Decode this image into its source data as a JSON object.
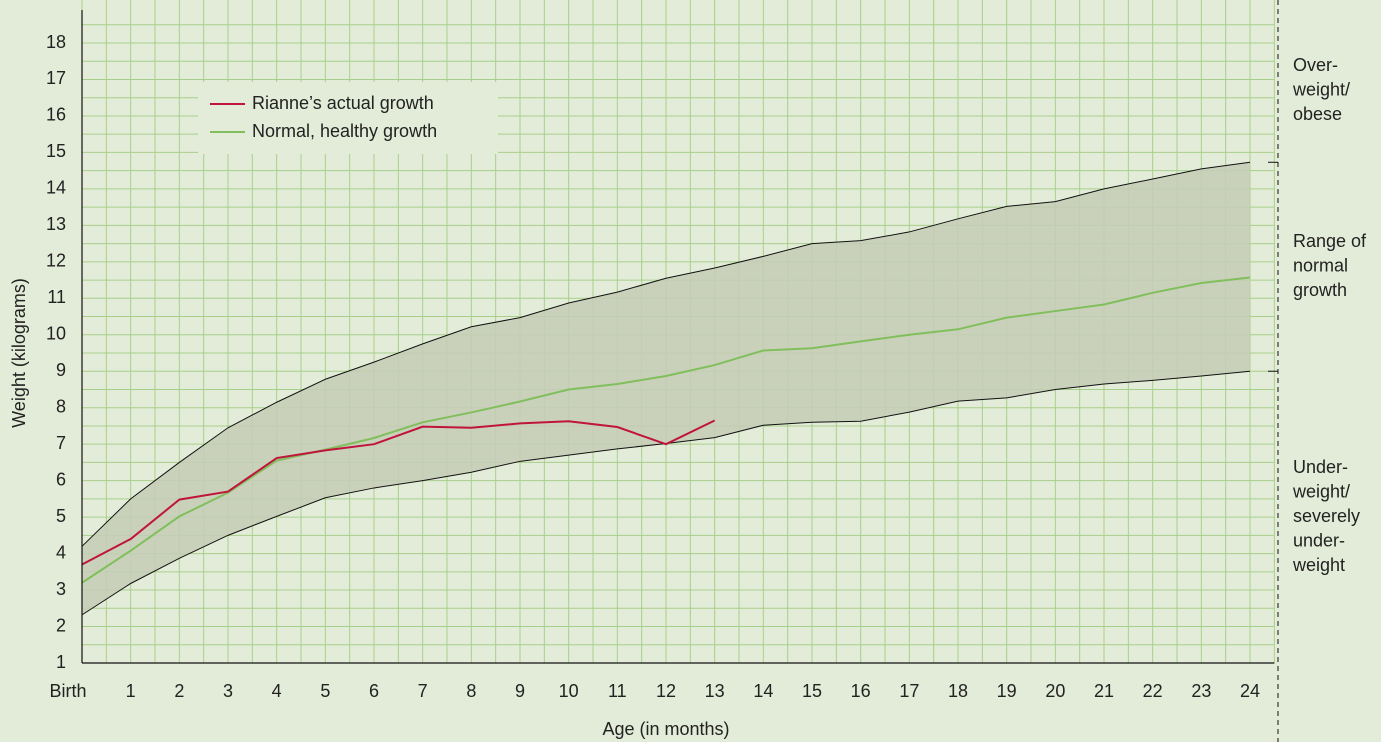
{
  "chart_data": {
    "type": "line",
    "xlabel": "Age (in months)",
    "ylabel": "Weight (kilograms)",
    "categories": [
      "Birth",
      "1",
      "2",
      "3",
      "4",
      "5",
      "6",
      "7",
      "8",
      "9",
      "10",
      "11",
      "12",
      "13",
      "14",
      "15",
      "16",
      "17",
      "18",
      "19",
      "20",
      "21",
      "22",
      "23",
      "24"
    ],
    "xlim": [
      0,
      24.5
    ],
    "ylim": [
      1,
      19.4
    ],
    "yticks": [
      1,
      2,
      3,
      4,
      5,
      6,
      7,
      8,
      9,
      10,
      11,
      12,
      13,
      14,
      15,
      16,
      17,
      18
    ],
    "grid": true,
    "legend": "upper left",
    "band": {
      "color": "#c6cdb6",
      "edge_color": "#111111",
      "upper": [
        4.2,
        5.5,
        6.5,
        7.45,
        8.15,
        8.78,
        9.25,
        9.75,
        10.22,
        10.47,
        10.87,
        11.17,
        11.55,
        11.83,
        12.15,
        12.5,
        12.58,
        12.82,
        13.18,
        13.52,
        13.65,
        14.0,
        14.27,
        14.55,
        14.73
      ],
      "lower": [
        2.32,
        3.18,
        3.87,
        4.5,
        5.02,
        5.53,
        5.8,
        6.0,
        6.23,
        6.53,
        6.7,
        6.87,
        7.02,
        7.18,
        7.52,
        7.6,
        7.63,
        7.88,
        8.18,
        8.27,
        8.5,
        8.65,
        8.75,
        8.87,
        9.0
      ]
    },
    "series": [
      {
        "name": "Rianne’s actual growth",
        "color": "#c0143c",
        "values": [
          3.7,
          4.4,
          5.48,
          5.7,
          6.62,
          6.83,
          7.0,
          7.48,
          7.45,
          7.57,
          7.63,
          7.47,
          7.0,
          7.65,
          null,
          null,
          null,
          null,
          null,
          null,
          null,
          null,
          null,
          null,
          null
        ]
      },
      {
        "name": "Normal, healthy growth",
        "color": "#80bf5c",
        "values": [
          3.2,
          4.08,
          5.02,
          5.67,
          6.55,
          6.85,
          7.17,
          7.6,
          7.87,
          8.17,
          8.5,
          8.65,
          8.87,
          9.17,
          9.57,
          9.63,
          9.82,
          10.0,
          10.15,
          10.47,
          10.65,
          10.83,
          11.15,
          11.42,
          11.57
        ]
      }
    ],
    "zone_boundaries": [
      14.73,
      9.0
    ],
    "zones": [
      [
        "Over-",
        "weight/",
        "obese"
      ],
      [
        "Range of",
        "normal",
        "growth"
      ],
      [
        "Under-",
        "weight/",
        "severely",
        "under-",
        "weight"
      ]
    ]
  }
}
